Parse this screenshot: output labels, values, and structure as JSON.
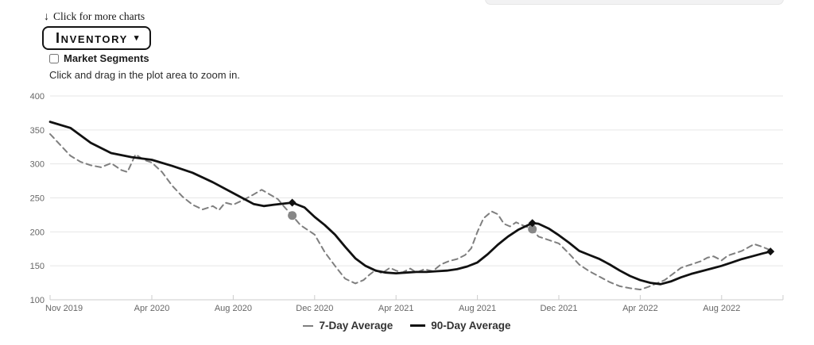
{
  "header": {
    "more_charts_link": "Click for more charts",
    "down_arrow_icon": "↓",
    "chart_selector": {
      "label": "Inventory",
      "caret": "▾"
    },
    "market_segments_label": "Market Segments",
    "instruction": "Click and drag in the plot area to zoom in."
  },
  "colors": {
    "series_7day": "#7f7f7f",
    "series_90day": "#111111",
    "grid": "#e6e6e6",
    "axis_line": "#cccccc",
    "axis_label": "#666666",
    "marker_circle": "#878787",
    "marker_diamond": "#111111"
  },
  "chart_data": {
    "type": "line",
    "title": "",
    "xlabel": "",
    "ylabel": "",
    "grid": "horizontal-only",
    "legend_position": "bottom-center",
    "x_axis": {
      "unit": "months since Nov 2019",
      "range_months": [
        0,
        35.9
      ],
      "tick_labels": [
        "Nov 2019",
        "Apr 2020",
        "Aug 2020",
        "Dec 2020",
        "Apr 2021",
        "Aug 2021",
        "Dec 2021",
        "Apr 2022",
        "Aug 2022"
      ],
      "tick_months": [
        0,
        5,
        9,
        13,
        17,
        21,
        25,
        29,
        33
      ]
    },
    "y_axis": {
      "range": [
        100,
        400
      ],
      "ticks": [
        100,
        150,
        200,
        250,
        300,
        350,
        400
      ]
    },
    "series": [
      {
        "name": "7-Day Average",
        "style": "dashed",
        "color": "#7f7f7f",
        "points": [
          [
            0,
            344
          ],
          [
            0.5,
            328
          ],
          [
            1,
            312
          ],
          [
            1.5,
            303
          ],
          [
            2,
            298
          ],
          [
            2.5,
            295
          ],
          [
            3,
            301
          ],
          [
            3.5,
            291
          ],
          [
            3.8,
            288
          ],
          [
            4.2,
            314
          ],
          [
            4.6,
            306
          ],
          [
            5,
            302
          ],
          [
            5.5,
            288
          ],
          [
            6,
            268
          ],
          [
            6.5,
            252
          ],
          [
            7,
            240
          ],
          [
            7.5,
            233
          ],
          [
            8,
            238
          ],
          [
            8.3,
            232
          ],
          [
            8.6,
            243
          ],
          [
            9,
            240
          ],
          [
            9.5,
            247
          ],
          [
            10,
            255
          ],
          [
            10.4,
            262
          ],
          [
            10.8,
            255
          ],
          [
            11.2,
            248
          ],
          [
            11.5,
            237
          ],
          [
            11.9,
            224
          ],
          [
            12.3,
            210
          ],
          [
            13,
            196
          ],
          [
            13.5,
            170
          ],
          [
            14,
            150
          ],
          [
            14.5,
            131
          ],
          [
            15,
            124
          ],
          [
            15.4,
            129
          ],
          [
            15.7,
            137
          ],
          [
            16,
            144
          ],
          [
            16.3,
            139
          ],
          [
            16.7,
            147
          ],
          [
            17,
            143
          ],
          [
            17.3,
            140
          ],
          [
            17.7,
            146
          ],
          [
            18,
            140
          ],
          [
            18.4,
            145
          ],
          [
            18.8,
            142
          ],
          [
            19.2,
            152
          ],
          [
            19.6,
            157
          ],
          [
            20,
            160
          ],
          [
            20.4,
            166
          ],
          [
            20.7,
            176
          ],
          [
            21,
            200
          ],
          [
            21.3,
            220
          ],
          [
            21.7,
            230
          ],
          [
            22,
            226
          ],
          [
            22.3,
            212
          ],
          [
            22.6,
            208
          ],
          [
            22.9,
            214
          ],
          [
            23.2,
            210
          ],
          [
            23.7,
            204
          ],
          [
            24,
            193
          ],
          [
            24.5,
            188
          ],
          [
            25,
            183
          ],
          [
            25.5,
            168
          ],
          [
            26,
            152
          ],
          [
            26.5,
            142
          ],
          [
            27,
            134
          ],
          [
            27.5,
            126
          ],
          [
            28,
            120
          ],
          [
            28.5,
            117
          ],
          [
            29,
            115
          ],
          [
            29.4,
            119
          ],
          [
            29.8,
            124
          ],
          [
            30.2,
            129
          ],
          [
            30.6,
            138
          ],
          [
            31,
            147
          ],
          [
            31.5,
            152
          ],
          [
            32,
            157
          ],
          [
            32.3,
            162
          ],
          [
            32.6,
            164
          ],
          [
            33,
            158
          ],
          [
            33.3,
            165
          ],
          [
            33.7,
            169
          ],
          [
            34,
            172
          ],
          [
            34.6,
            182
          ],
          [
            35,
            178
          ],
          [
            35.4,
            173
          ]
        ]
      },
      {
        "name": "90-Day Average",
        "style": "solid",
        "color": "#111111",
        "points": [
          [
            0,
            362
          ],
          [
            1,
            353
          ],
          [
            2,
            331
          ],
          [
            3,
            316
          ],
          [
            4,
            310
          ],
          [
            5,
            306
          ],
          [
            6,
            297
          ],
          [
            7,
            287
          ],
          [
            8,
            273
          ],
          [
            9,
            257
          ],
          [
            10,
            241
          ],
          [
            10.5,
            238
          ],
          [
            11,
            240
          ],
          [
            11.9,
            243
          ],
          [
            12.5,
            236
          ],
          [
            13,
            222
          ],
          [
            13.5,
            210
          ],
          [
            14,
            196
          ],
          [
            14.5,
            178
          ],
          [
            15,
            161
          ],
          [
            15.5,
            150
          ],
          [
            16,
            143
          ],
          [
            16.5,
            140
          ],
          [
            17,
            139
          ],
          [
            17.5,
            140
          ],
          [
            18,
            141
          ],
          [
            18.5,
            141
          ],
          [
            19,
            142
          ],
          [
            19.5,
            143
          ],
          [
            20,
            145
          ],
          [
            20.5,
            149
          ],
          [
            21,
            155
          ],
          [
            21.5,
            167
          ],
          [
            22,
            181
          ],
          [
            22.5,
            193
          ],
          [
            23,
            203
          ],
          [
            23.7,
            213
          ],
          [
            24,
            212
          ],
          [
            24.5,
            205
          ],
          [
            25,
            195
          ],
          [
            25.5,
            184
          ],
          [
            26,
            172
          ],
          [
            26.5,
            166
          ],
          [
            27,
            160
          ],
          [
            27.5,
            152
          ],
          [
            28,
            143
          ],
          [
            28.5,
            135
          ],
          [
            29,
            129
          ],
          [
            29.5,
            125
          ],
          [
            30,
            123
          ],
          [
            30.5,
            127
          ],
          [
            31,
            133
          ],
          [
            31.5,
            138
          ],
          [
            32,
            142
          ],
          [
            32.5,
            146
          ],
          [
            33,
            150
          ],
          [
            33.5,
            155
          ],
          [
            34,
            160
          ],
          [
            34.5,
            164
          ],
          [
            35,
            168
          ],
          [
            35.4,
            171
          ]
        ]
      }
    ],
    "markers": [
      {
        "series": "7-Day Average",
        "shape": "circle",
        "month": 11.9,
        "value": 224
      },
      {
        "series": "7-Day Average",
        "shape": "circle",
        "month": 23.7,
        "value": 204
      },
      {
        "series": "90-Day Average",
        "shape": "diamond",
        "month": 11.9,
        "value": 243
      },
      {
        "series": "90-Day Average",
        "shape": "diamond",
        "month": 23.7,
        "value": 213
      },
      {
        "series": "90-Day Average",
        "shape": "diamond",
        "month": 35.4,
        "value": 171
      }
    ]
  }
}
